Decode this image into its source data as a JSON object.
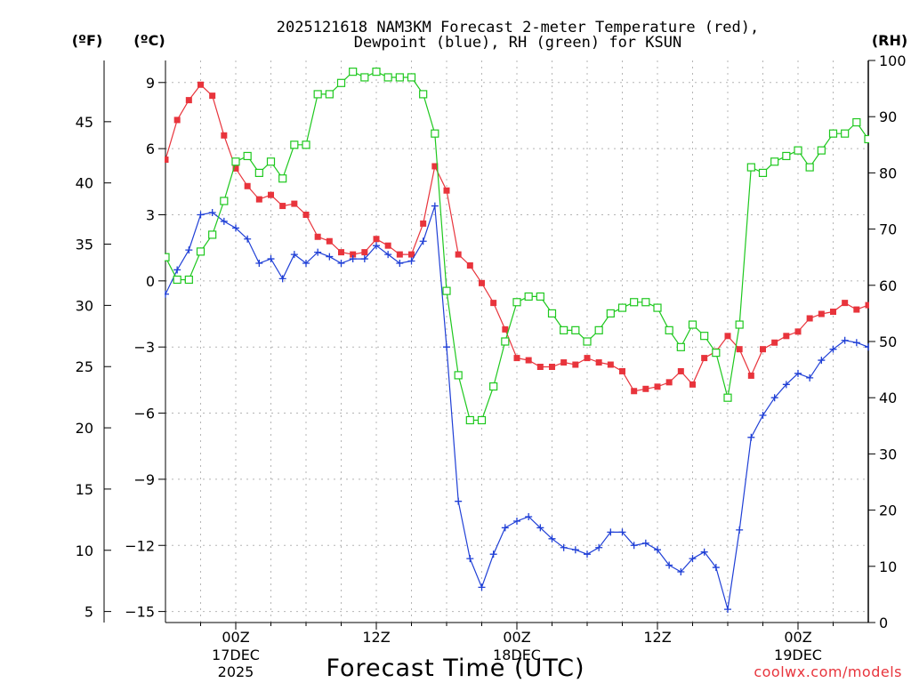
{
  "chart_data": {
    "type": "line",
    "title_line1": "2025121618 NAM3KM Forecast 2-meter Temperature (red),",
    "title_line2": "Dewpoint (blue), RH (green) for KSUN",
    "xlabel": "Forecast Time (UTC)",
    "y_label_f": "(ºF)",
    "y_label_c": "(ºC)",
    "y_label_rh": "(RH)",
    "watermark": "coolwx.com/models",
    "x_range_hours": [
      -6,
      54
    ],
    "celsius_range": [
      -15.5,
      10
    ],
    "rh_range": [
      0,
      100
    ],
    "c_ticks": [
      {
        "v": 9,
        "label": "9"
      },
      {
        "v": 6,
        "label": "6"
      },
      {
        "v": 3,
        "label": "3"
      },
      {
        "v": 0,
        "label": "0"
      },
      {
        "v": -3,
        "label": "−3"
      },
      {
        "v": -6,
        "label": "−6"
      },
      {
        "v": -9,
        "label": "−9"
      },
      {
        "v": -12,
        "label": "−12"
      },
      {
        "v": -15,
        "label": "−15"
      }
    ],
    "f_ticks": [
      {
        "v": 45,
        "label": "45"
      },
      {
        "v": 40,
        "label": "40"
      },
      {
        "v": 35,
        "label": "35"
      },
      {
        "v": 30,
        "label": "30"
      },
      {
        "v": 25,
        "label": "25"
      },
      {
        "v": 20,
        "label": "20"
      },
      {
        "v": 15,
        "label": "15"
      },
      {
        "v": 10,
        "label": "10"
      },
      {
        "v": 5,
        "label": "5"
      }
    ],
    "rh_ticks": [
      {
        "v": 100,
        "label": "100"
      },
      {
        "v": 90,
        "label": "90"
      },
      {
        "v": 80,
        "label": "80"
      },
      {
        "v": 70,
        "label": "70"
      },
      {
        "v": 60,
        "label": "60"
      },
      {
        "v": 50,
        "label": "50"
      },
      {
        "v": 40,
        "label": "40"
      },
      {
        "v": 30,
        "label": "30"
      },
      {
        "v": 20,
        "label": "20"
      },
      {
        "v": 10,
        "label": "10"
      },
      {
        "v": 0,
        "label": "0"
      }
    ],
    "x_ticks": [
      {
        "h": 0,
        "label": "00Z",
        "sub1": "17DEC",
        "sub2": "2025"
      },
      {
        "h": 12,
        "label": "12Z",
        "sub1": "",
        "sub2": ""
      },
      {
        "h": 24,
        "label": "00Z",
        "sub1": "18DEC",
        "sub2": ""
      },
      {
        "h": 36,
        "label": "12Z",
        "sub1": "",
        "sub2": ""
      },
      {
        "h": 48,
        "label": "00Z",
        "sub1": "19DEC",
        "sub2": ""
      }
    ],
    "x_minor_ticks": [
      -3,
      3,
      6,
      9,
      15,
      18,
      21,
      27,
      30,
      33,
      39,
      42,
      45,
      51
    ],
    "hours": [
      -6,
      -5,
      -4,
      -3,
      -2,
      -1,
      0,
      1,
      2,
      3,
      4,
      5,
      6,
      7,
      8,
      9,
      10,
      11,
      12,
      13,
      14,
      15,
      16,
      17,
      18,
      19,
      20,
      21,
      22,
      23,
      24,
      25,
      26,
      27,
      28,
      29,
      30,
      31,
      32,
      33,
      34,
      35,
      36,
      37,
      38,
      39,
      40,
      41,
      42,
      43,
      44,
      45,
      46,
      47,
      48,
      49,
      50,
      51,
      52,
      53,
      54
    ],
    "series": [
      {
        "name": "Temperature",
        "unit": "C",
        "color": "#e8343c",
        "marker": "filled-square",
        "values": [
          5.5,
          7.3,
          8.2,
          8.9,
          8.4,
          6.6,
          5.1,
          4.3,
          3.7,
          3.9,
          3.4,
          3.5,
          3.0,
          2.0,
          1.8,
          1.3,
          1.2,
          1.3,
          1.9,
          1.6,
          1.2,
          1.2,
          2.6,
          5.2,
          4.1,
          1.2,
          0.7,
          -0.1,
          -1.0,
          -2.2,
          -3.5,
          -3.6,
          -3.9,
          -3.9,
          -3.7,
          -3.8,
          -3.5,
          -3.7,
          -3.8,
          -4.1,
          -5.0,
          -4.9,
          -4.8,
          -4.6,
          -4.1,
          -4.7,
          -3.5,
          -3.2,
          -2.5,
          -3.1,
          -4.3,
          -3.1,
          -2.8,
          -2.5,
          -2.3,
          -1.7,
          -1.5,
          -1.4,
          -1.0,
          -1.3,
          -1.1
        ]
      },
      {
        "name": "Dewpoint",
        "unit": "C",
        "color": "#1f3fd6",
        "marker": "plus",
        "values": [
          -0.6,
          0.5,
          1.4,
          3.0,
          3.1,
          2.7,
          2.4,
          1.9,
          0.8,
          1.0,
          0.1,
          1.2,
          0.8,
          1.3,
          1.1,
          0.8,
          1.0,
          1.0,
          1.6,
          1.2,
          0.8,
          0.9,
          1.8,
          3.4,
          -3.0,
          -10.0,
          -12.6,
          -13.9,
          -12.4,
          -11.2,
          -10.9,
          -10.7,
          -11.2,
          -11.7,
          -12.1,
          -12.2,
          -12.4,
          -12.1,
          -11.4,
          -11.4,
          -12.0,
          -11.9,
          -12.2,
          -12.9,
          -13.2,
          -12.6,
          -12.3,
          -13.0,
          -14.9,
          -11.3,
          -7.1,
          -6.1,
          -5.3,
          -4.7,
          -4.2,
          -4.4,
          -3.6,
          -3.1,
          -2.7,
          -2.8,
          -3.0
        ]
      },
      {
        "name": "Relative Humidity",
        "unit": "%",
        "color": "#1ec81e",
        "marker": "open-square",
        "values": [
          65,
          61,
          61,
          66,
          69,
          75,
          82,
          83,
          80,
          82,
          79,
          85,
          85,
          94,
          94,
          96,
          98,
          97,
          98,
          97,
          97,
          97,
          94,
          87,
          59,
          44,
          36,
          36,
          42,
          50,
          57,
          58,
          58,
          55,
          52,
          52,
          50,
          52,
          55,
          56,
          57,
          57,
          56,
          52,
          49,
          53,
          51,
          48,
          40,
          53,
          81,
          80,
          82,
          83,
          84,
          81,
          84,
          87,
          87,
          89,
          86
        ]
      }
    ]
  }
}
